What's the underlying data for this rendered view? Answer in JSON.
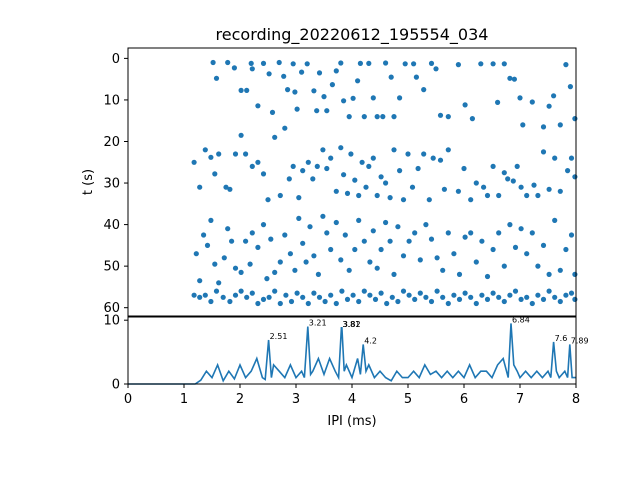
{
  "chart_data": [
    {
      "type": "scatter",
      "title": "recording_20220612_195554_034",
      "xlabel": "",
      "ylabel": "t (s)",
      "xlim": [
        0,
        8
      ],
      "ylim": [
        62,
        -2.5
      ],
      "y_inverted": true,
      "yticks": [
        0,
        10,
        20,
        30,
        40,
        50,
        60
      ],
      "xticks_shown": false,
      "marker_color": "#1f77b4",
      "points": [
        [
          1.52,
          1
        ],
        [
          1.58,
          4.8
        ],
        [
          1.78,
          1
        ],
        [
          1.9,
          2.3
        ],
        [
          2.02,
          7.7
        ],
        [
          2.12,
          7.7
        ],
        [
          2.2,
          1.2
        ],
        [
          2.22,
          2.5
        ],
        [
          2.32,
          11.4
        ],
        [
          2.42,
          1.2
        ],
        [
          2.52,
          3.7
        ],
        [
          2.58,
          13
        ],
        [
          2.7,
          1
        ],
        [
          2.78,
          4.3
        ],
        [
          2.85,
          7.5
        ],
        [
          2.95,
          1.3
        ],
        [
          2.98,
          8.1
        ],
        [
          3.02,
          12.2
        ],
        [
          3.1,
          3.3
        ],
        [
          3.2,
          1.3
        ],
        [
          3.32,
          7.8
        ],
        [
          3.37,
          12.6
        ],
        [
          3.42,
          3.5
        ],
        [
          3.5,
          9.2
        ],
        [
          3.55,
          12.6
        ],
        [
          3.65,
          6.3
        ],
        [
          3.72,
          3
        ],
        [
          3.8,
          1.1
        ],
        [
          3.85,
          10.2
        ],
        [
          3.95,
          14
        ],
        [
          4.02,
          9.6
        ],
        [
          4.1,
          5.4
        ],
        [
          4.15,
          1.2
        ],
        [
          4.22,
          14
        ],
        [
          4.3,
          1.2
        ],
        [
          4.38,
          9.5
        ],
        [
          4.45,
          14
        ],
        [
          4.55,
          14
        ],
        [
          4.6,
          1.1
        ],
        [
          4.7,
          4.5
        ],
        [
          4.75,
          14
        ],
        [
          4.85,
          9.5
        ],
        [
          4.95,
          1.3
        ],
        [
          5.1,
          1.3
        ],
        [
          5.15,
          4.5
        ],
        [
          5.28,
          7.5
        ],
        [
          5.42,
          1.2
        ],
        [
          5.5,
          2.5
        ],
        [
          5.58,
          13.7
        ],
        [
          5.72,
          14
        ],
        [
          5.9,
          1.5
        ],
        [
          6.02,
          11.2
        ],
        [
          6.15,
          14.5
        ],
        [
          6.3,
          1.3
        ],
        [
          6.52,
          1.3
        ],
        [
          6.6,
          10.6
        ],
        [
          6.72,
          1.3
        ],
        [
          6.82,
          4.8
        ],
        [
          6.9,
          5
        ],
        [
          7.0,
          9.5
        ],
        [
          7.05,
          16
        ],
        [
          7.22,
          10.5
        ],
        [
          7.42,
          16.5
        ],
        [
          7.52,
          11.5
        ],
        [
          7.6,
          9
        ],
        [
          7.72,
          16
        ],
        [
          7.82,
          1.5
        ],
        [
          7.9,
          6.8
        ],
        [
          7.98,
          14.5
        ],
        [
          1.18,
          25
        ],
        [
          1.28,
          31
        ],
        [
          1.38,
          22
        ],
        [
          1.48,
          23.8
        ],
        [
          1.55,
          27.8
        ],
        [
          1.62,
          23
        ],
        [
          1.75,
          31
        ],
        [
          1.82,
          31.5
        ],
        [
          1.92,
          23
        ],
        [
          2.02,
          18.5
        ],
        [
          2.1,
          23
        ],
        [
          2.22,
          26
        ],
        [
          2.32,
          25
        ],
        [
          2.42,
          27.8
        ],
        [
          2.5,
          34
        ],
        [
          2.62,
          19
        ],
        [
          2.72,
          33
        ],
        [
          2.8,
          16.8
        ],
        [
          2.88,
          29
        ],
        [
          2.95,
          26
        ],
        [
          3.05,
          33.5
        ],
        [
          3.12,
          27
        ],
        [
          3.22,
          25
        ],
        [
          3.3,
          29
        ],
        [
          3.38,
          26
        ],
        [
          3.48,
          22
        ],
        [
          3.55,
          26.5
        ],
        [
          3.62,
          24
        ],
        [
          3.72,
          32
        ],
        [
          3.8,
          21.5
        ],
        [
          3.85,
          28
        ],
        [
          3.92,
          32.5
        ],
        [
          3.98,
          23
        ],
        [
          4.05,
          29.3
        ],
        [
          4.12,
          33
        ],
        [
          4.18,
          25
        ],
        [
          4.25,
          31
        ],
        [
          4.3,
          26
        ],
        [
          4.38,
          24
        ],
        [
          4.45,
          33
        ],
        [
          4.52,
          28.5
        ],
        [
          4.6,
          30
        ],
        [
          4.68,
          33.5
        ],
        [
          4.75,
          22
        ],
        [
          4.85,
          27
        ],
        [
          4.92,
          34
        ],
        [
          5.0,
          23
        ],
        [
          5.08,
          31
        ],
        [
          5.18,
          26.5
        ],
        [
          5.28,
          23
        ],
        [
          5.38,
          34
        ],
        [
          5.45,
          24
        ],
        [
          5.58,
          24.5
        ],
        [
          5.65,
          31.5
        ],
        [
          5.72,
          22
        ],
        [
          5.9,
          32
        ],
        [
          6.0,
          26.5
        ],
        [
          6.12,
          34
        ],
        [
          6.22,
          30
        ],
        [
          6.35,
          31
        ],
        [
          6.42,
          33
        ],
        [
          6.52,
          26
        ],
        [
          6.62,
          33
        ],
        [
          6.72,
          27.5
        ],
        [
          6.78,
          29
        ],
        [
          6.88,
          29.5
        ],
        [
          6.95,
          26
        ],
        [
          7.02,
          31
        ],
        [
          7.12,
          33
        ],
        [
          7.25,
          30.5
        ],
        [
          7.32,
          33
        ],
        [
          7.42,
          22.5
        ],
        [
          7.52,
          31.5
        ],
        [
          7.62,
          24
        ],
        [
          7.72,
          32
        ],
        [
          7.85,
          27
        ],
        [
          7.92,
          24
        ],
        [
          7.98,
          28.5
        ],
        [
          1.22,
          47
        ],
        [
          1.28,
          53.5
        ],
        [
          1.35,
          42.5
        ],
        [
          1.42,
          45
        ],
        [
          1.48,
          39
        ],
        [
          1.55,
          49.5
        ],
        [
          1.62,
          54
        ],
        [
          1.72,
          48
        ],
        [
          1.78,
          41
        ],
        [
          1.85,
          44
        ],
        [
          1.92,
          50.5
        ],
        [
          2.02,
          51.5
        ],
        [
          2.1,
          44
        ],
        [
          2.18,
          49.5
        ],
        [
          2.22,
          42
        ],
        [
          2.32,
          45.5
        ],
        [
          2.42,
          40
        ],
        [
          2.48,
          53
        ],
        [
          2.55,
          43.5
        ],
        [
          2.62,
          51.5
        ],
        [
          2.72,
          49
        ],
        [
          2.8,
          42.5
        ],
        [
          2.9,
          47
        ],
        [
          2.98,
          51
        ],
        [
          3.05,
          38.5
        ],
        [
          3.12,
          44.5
        ],
        [
          3.18,
          49
        ],
        [
          3.25,
          40.5
        ],
        [
          3.32,
          47.5
        ],
        [
          3.4,
          52
        ],
        [
          3.48,
          38
        ],
        [
          3.55,
          42
        ],
        [
          3.62,
          46
        ],
        [
          3.72,
          39.5
        ],
        [
          3.8,
          48.5
        ],
        [
          3.88,
          42.5
        ],
        [
          3.95,
          51
        ],
        [
          4.05,
          46
        ],
        [
          4.12,
          39
        ],
        [
          4.22,
          44
        ],
        [
          4.32,
          49
        ],
        [
          4.38,
          41.5
        ],
        [
          4.45,
          50.5
        ],
        [
          4.52,
          46
        ],
        [
          4.6,
          39.5
        ],
        [
          4.68,
          44
        ],
        [
          4.75,
          52
        ],
        [
          4.82,
          40.5
        ],
        [
          4.92,
          47.5
        ],
        [
          5.02,
          44
        ],
        [
          5.12,
          42
        ],
        [
          5.22,
          48.5
        ],
        [
          5.32,
          40
        ],
        [
          5.42,
          43.5
        ],
        [
          5.52,
          48
        ],
        [
          5.62,
          51
        ],
        [
          5.72,
          42
        ],
        [
          5.82,
          47
        ],
        [
          5.92,
          52
        ],
        [
          6.02,
          43
        ],
        [
          6.12,
          42
        ],
        [
          6.22,
          49
        ],
        [
          6.32,
          44
        ],
        [
          6.42,
          52.5
        ],
        [
          6.52,
          46
        ],
        [
          6.62,
          42
        ],
        [
          6.72,
          50
        ],
        [
          6.82,
          40
        ],
        [
          6.92,
          45.5
        ],
        [
          7.02,
          41
        ],
        [
          7.12,
          47
        ],
        [
          7.22,
          42
        ],
        [
          7.32,
          50
        ],
        [
          7.42,
          45
        ],
        [
          7.52,
          52
        ],
        [
          7.62,
          39
        ],
        [
          7.72,
          51
        ],
        [
          7.82,
          46
        ],
        [
          7.92,
          42.5
        ],
        [
          7.98,
          52
        ],
        [
          1.18,
          57
        ],
        [
          1.28,
          57.5
        ],
        [
          1.38,
          57
        ],
        [
          1.48,
          58.5
        ],
        [
          1.58,
          56
        ],
        [
          1.7,
          57.5
        ],
        [
          1.82,
          58.5
        ],
        [
          1.92,
          57
        ],
        [
          2.02,
          56
        ],
        [
          2.12,
          57.5
        ],
        [
          2.22,
          56.5
        ],
        [
          2.32,
          59
        ],
        [
          2.42,
          58
        ],
        [
          2.52,
          57.5
        ],
        [
          2.62,
          56
        ],
        [
          2.72,
          59
        ],
        [
          2.82,
          57
        ],
        [
          2.92,
          58.5
        ],
        [
          3.02,
          56.5
        ],
        [
          3.12,
          57.5
        ],
        [
          3.22,
          59
        ],
        [
          3.32,
          56.5
        ],
        [
          3.42,
          57.5
        ],
        [
          3.52,
          58.5
        ],
        [
          3.62,
          57
        ],
        [
          3.72,
          59
        ],
        [
          3.82,
          56
        ],
        [
          3.92,
          58
        ],
        [
          4.02,
          57
        ],
        [
          4.12,
          58.5
        ],
        [
          4.22,
          56
        ],
        [
          4.32,
          57
        ],
        [
          4.42,
          58
        ],
        [
          4.52,
          56.5
        ],
        [
          4.62,
          59
        ],
        [
          4.72,
          57.5
        ],
        [
          4.82,
          58.5
        ],
        [
          4.92,
          56
        ],
        [
          5.02,
          57
        ],
        [
          5.12,
          58
        ],
        [
          5.22,
          56.5
        ],
        [
          5.32,
          57.5
        ],
        [
          5.42,
          58.5
        ],
        [
          5.52,
          56
        ],
        [
          5.62,
          57.5
        ],
        [
          5.72,
          59
        ],
        [
          5.82,
          57
        ],
        [
          5.92,
          58
        ],
        [
          6.02,
          56.5
        ],
        [
          6.12,
          57.5
        ],
        [
          6.22,
          59
        ],
        [
          6.32,
          57
        ],
        [
          6.42,
          58
        ],
        [
          6.52,
          56.5
        ],
        [
          6.62,
          57.5
        ],
        [
          6.72,
          58.5
        ],
        [
          6.82,
          57
        ],
        [
          6.92,
          56
        ],
        [
          7.02,
          58
        ],
        [
          7.12,
          57.5
        ],
        [
          7.22,
          59
        ],
        [
          7.32,
          57
        ],
        [
          7.42,
          58
        ],
        [
          7.52,
          56
        ],
        [
          7.62,
          57.5
        ],
        [
          7.72,
          58.5
        ],
        [
          7.82,
          57
        ],
        [
          7.92,
          56.5
        ],
        [
          7.98,
          58
        ]
      ]
    },
    {
      "type": "line",
      "title": "",
      "xlabel": "IPI (ms)",
      "ylabel": "",
      "xlim": [
        0,
        8
      ],
      "ylim": [
        0,
        10.5
      ],
      "xticks": [
        0,
        1,
        2,
        3,
        4,
        5,
        6,
        7,
        8
      ],
      "yticks": [
        0,
        10
      ],
      "line_color": "#1f77b4",
      "x": [
        0.0,
        0.5,
        1.0,
        1.1,
        1.2,
        1.3,
        1.4,
        1.5,
        1.6,
        1.7,
        1.8,
        1.9,
        2.0,
        2.1,
        2.2,
        2.3,
        2.4,
        2.45,
        2.51,
        2.56,
        2.6,
        2.7,
        2.8,
        2.9,
        3.0,
        3.1,
        3.15,
        3.21,
        3.26,
        3.3,
        3.4,
        3.5,
        3.6,
        3.7,
        3.76,
        3.81,
        3.82,
        3.86,
        3.9,
        4.0,
        4.1,
        4.15,
        4.2,
        4.25,
        4.3,
        4.4,
        4.5,
        4.6,
        4.7,
        4.8,
        4.9,
        5.0,
        5.1,
        5.2,
        5.3,
        5.4,
        5.5,
        5.6,
        5.7,
        5.8,
        5.9,
        6.0,
        6.1,
        6.2,
        6.3,
        6.4,
        6.5,
        6.6,
        6.7,
        6.79,
        6.84,
        6.89,
        6.95,
        7.0,
        7.1,
        7.2,
        7.3,
        7.4,
        7.5,
        7.55,
        7.6,
        7.65,
        7.7,
        7.8,
        7.85,
        7.89,
        7.93,
        8.0
      ],
      "y": [
        0,
        0,
        0,
        0,
        0,
        0.6,
        2,
        1,
        3,
        0.5,
        2,
        0.8,
        3,
        1,
        2,
        4,
        1,
        0.7,
        6.9,
        1,
        3,
        2,
        1,
        3,
        1,
        2,
        1,
        9,
        1.5,
        2,
        4,
        1.5,
        4,
        2,
        1,
        8.8,
        8.8,
        2,
        3,
        1,
        4,
        1.5,
        6.2,
        2,
        3,
        1,
        2,
        1,
        0.5,
        2,
        1,
        1,
        2,
        1,
        3,
        1.5,
        2,
        1,
        2,
        1,
        2,
        1,
        3,
        1,
        2,
        2,
        1,
        3,
        4,
        1,
        9.5,
        3,
        2,
        1,
        2,
        1,
        2,
        1,
        2,
        1,
        6.6,
        2,
        1,
        2,
        1,
        6.2,
        1,
        1
      ],
      "peak_labels": [
        {
          "x": 2.51,
          "y": 6.9,
          "text": "2.51"
        },
        {
          "x": 3.21,
          "y": 9.0,
          "text": "3.21"
        },
        {
          "x": 3.81,
          "y": 8.8,
          "text": "3.81"
        },
        {
          "x": 3.82,
          "y": 8.8,
          "text": "3.82"
        },
        {
          "x": 4.2,
          "y": 6.2,
          "text": "4.2"
        },
        {
          "x": 6.84,
          "y": 9.5,
          "text": "6.84"
        },
        {
          "x": 7.6,
          "y": 6.6,
          "text": "7.6"
        },
        {
          "x": 7.89,
          "y": 6.2,
          "text": "7.89"
        }
      ]
    }
  ]
}
